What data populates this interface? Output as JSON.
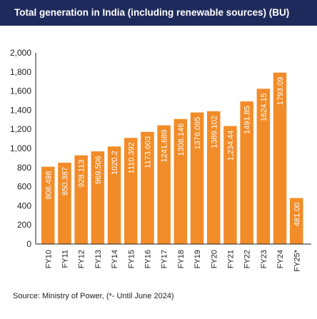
{
  "title": "Total generation in India (including renewable sources) (BU)",
  "source": "Source: Ministry of Power, (*- Until June 2024)",
  "colors": {
    "header_bg": "#1f2a5c",
    "bar": "#f28c28",
    "bar_label": "#ffffff",
    "axis": "#222222"
  },
  "chart_data": {
    "type": "bar",
    "title": "Total generation in India (including renewable sources) (BU)",
    "categories": [
      "FY10",
      "FY11",
      "FY12",
      "FY13",
      "FY14",
      "FY15",
      "FY16",
      "FY17",
      "FY18",
      "FY19",
      "FY20",
      "FY21",
      "FY22",
      "FY23",
      "FY24",
      "FY25*"
    ],
    "values": [
      808.498,
      850.387,
      928.113,
      969.506,
      1020.2,
      1110.392,
      1173.603,
      1241.689,
      1308.146,
      1376.095,
      1389.102,
      1234.44,
      1491.85,
      1624.15,
      1793.09,
      481.0
    ],
    "value_labels": [
      "808.498",
      "850.387",
      "928.113",
      "969.506",
      "1020.2",
      "1110.392",
      "1173.603",
      "1241.689",
      "1308.146",
      "1376.095",
      "1389.102",
      "1,234.44",
      "1491.85",
      "1624.15",
      "1793.09",
      "481.00"
    ],
    "ylim": [
      0,
      2000
    ],
    "yticks": [
      0,
      200,
      400,
      600,
      800,
      1000,
      1200,
      1400,
      1600,
      1800,
      2000
    ],
    "ytick_labels": [
      "0",
      "200",
      "400",
      "600",
      "800",
      "1,000",
      "1,200",
      "1,400",
      "1,600",
      "1,800",
      "2,000"
    ],
    "xlabel": "",
    "ylabel": "",
    "grid": false,
    "legend": "none"
  }
}
